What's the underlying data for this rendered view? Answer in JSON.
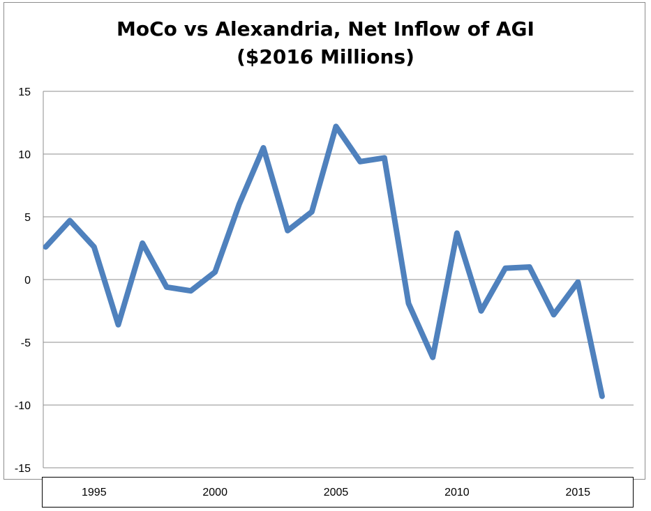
{
  "chart_data": {
    "type": "line",
    "title_line1": "MoCo vs Alexandria, Net Inflow of AGI",
    "title_line2": "($2016 Millions)",
    "xlabel": "",
    "ylabel": "",
    "ylim": [
      -15,
      15
    ],
    "yticks": [
      15,
      10,
      5,
      0,
      -5,
      -10,
      -15
    ],
    "xticks": [
      1995,
      2000,
      2005,
      2010,
      2015
    ],
    "xlim": [
      1992.9,
      2017.3
    ],
    "grid": true,
    "legend": "none",
    "line_color": "#4f81bd",
    "series": [
      {
        "x": [
          1993,
          1994,
          1995,
          1996,
          1997,
          1998,
          1999,
          2000,
          2001,
          2002,
          2003,
          2004,
          2005,
          2006,
          2007,
          2008,
          2009,
          2010,
          2011,
          2012,
          2013,
          2014,
          2015,
          2016
        ],
        "values": [
          2.6,
          4.7,
          2.6,
          -3.6,
          2.9,
          -0.6,
          -0.9,
          0.6,
          6.0,
          10.5,
          3.9,
          5.4,
          12.2,
          9.4,
          9.7,
          -1.9,
          -6.2,
          3.7,
          -2.5,
          0.9,
          1.0,
          -2.8,
          -0.2,
          -9.3
        ]
      }
    ]
  }
}
